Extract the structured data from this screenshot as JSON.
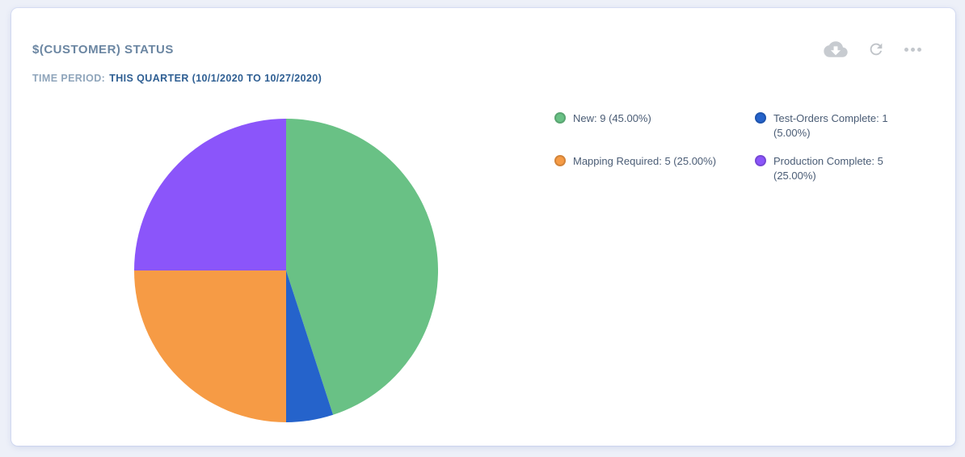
{
  "header": {
    "title": "$(CUSTOMER) STATUS",
    "time_period_label": "TIME PERIOD:",
    "time_period_value": "THIS QUARTER (10/1/2020 TO 10/27/2020)"
  },
  "toolbar": {
    "download_icon": "cloud-download-icon",
    "refresh_icon": "refresh-icon",
    "more_icon": "ellipsis-icon",
    "icon_color": "#c3c7cc"
  },
  "colors": {
    "page_background": "#edf0f8",
    "card_background": "#ffffff",
    "title_text": "#6b86a2",
    "time_label_text": "#8fa5bb",
    "time_value_text": "#2f5f93",
    "legend_text": "#4a5c75"
  },
  "chart_data": {
    "type": "pie",
    "title": "$(CUSTOMER) STATUS",
    "time_period": "THIS QUARTER (10/1/2020 TO 10/27/2020)",
    "categories": [
      "New",
      "Test-Orders Complete",
      "Mapping Required",
      "Production Complete"
    ],
    "values": [
      9,
      1,
      5,
      5
    ],
    "percentages": [
      45.0,
      5.0,
      25.0,
      25.0
    ],
    "colors": [
      "#69c185",
      "#2563cb",
      "#f69b45",
      "#8b55fa"
    ],
    "legend_labels": [
      "New: 9 (45.00%)",
      "Test-Orders Complete: 1 (5.00%)",
      "Mapping Required: 5 (25.00%)",
      "Production Complete: 5 (25.00%)"
    ],
    "start_angle_deg": 0,
    "direction": "clockwise",
    "legend_position": "right",
    "legend_columns": 2
  }
}
